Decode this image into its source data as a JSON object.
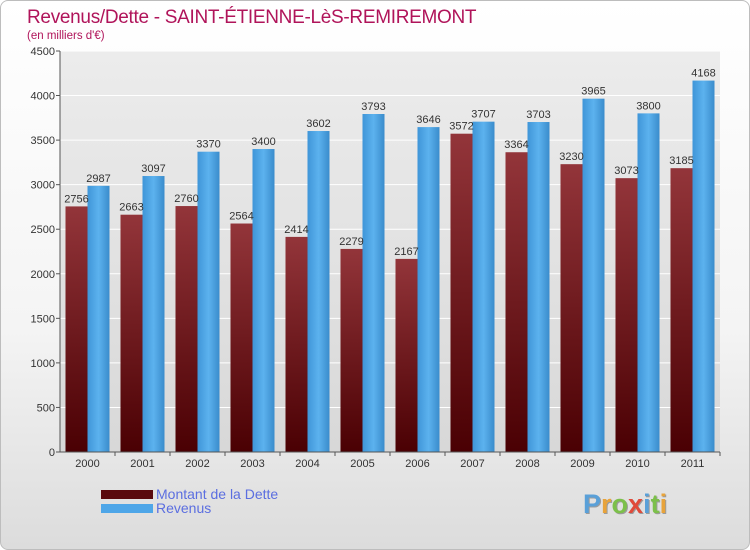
{
  "header": {
    "title": "Revenus/Dette - SAINT-ÉTIENNE-LèS-REMIREMONT",
    "subtitle": "(en milliers d'€)"
  },
  "legend": {
    "items": [
      {
        "label": "Montant de la Dette",
        "color": "#7a1f24"
      },
      {
        "label": "Revenus",
        "color": "#4ea6e8"
      }
    ]
  },
  "logo": {
    "text": "Proxiti",
    "letter_colors": [
      "#5aa0d8",
      "#e8a33a",
      "#7cc04a",
      "#e04a3a",
      "#5aa0d8",
      "#7cc04a",
      "#e8a33a"
    ]
  },
  "chart_data": {
    "type": "bar",
    "categories": [
      "2000",
      "2001",
      "2002",
      "2003",
      "2004",
      "2005",
      "2006",
      "2007",
      "2008",
      "2009",
      "2010",
      "2011"
    ],
    "series": [
      {
        "name": "Montant de la Dette",
        "color": "#7a1f24",
        "values": [
          2756,
          2663,
          2760,
          2564,
          2414,
          2279,
          2167,
          3572,
          3364,
          3230,
          3073,
          3185
        ]
      },
      {
        "name": "Revenus",
        "color": "#4ea6e8",
        "values": [
          2987,
          3097,
          3370,
          3400,
          3602,
          3793,
          3646,
          3707,
          3703,
          3965,
          3800,
          4168
        ]
      }
    ],
    "title": "Revenus/Dette - SAINT-ÉTIENNE-LèS-REMIREMONT",
    "ylabel": "(en milliers d'€)",
    "ylim": [
      0,
      4500
    ],
    "yticks": [
      0,
      500,
      1000,
      1500,
      2000,
      2500,
      3000,
      3500,
      4000,
      4500
    ],
    "grid": true,
    "legend_position": "bottom-left"
  }
}
